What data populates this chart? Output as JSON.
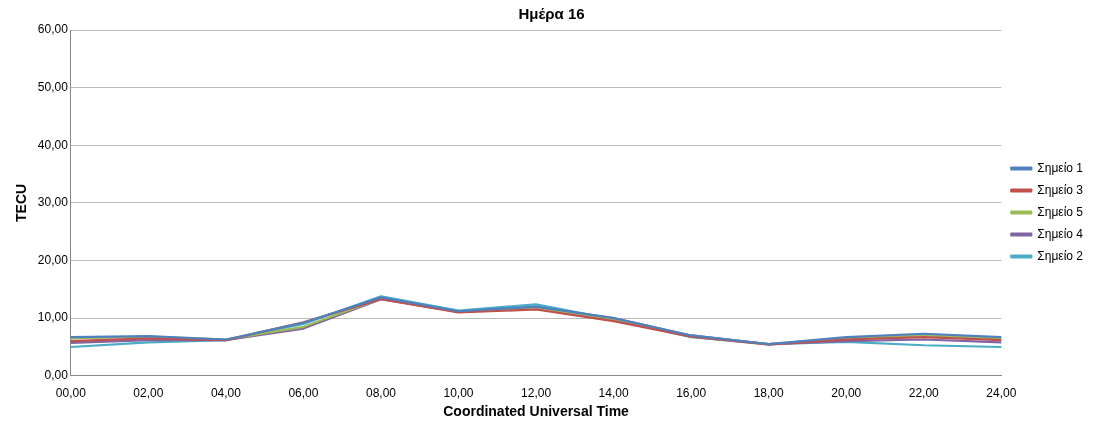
{
  "chart_data": {
    "type": "line",
    "title": "Ημέρα 16",
    "xlabel": "Coordinated Universal Time",
    "ylabel": "TECU",
    "categories": [
      "00,00",
      "02,00",
      "04,00",
      "06,00",
      "08,00",
      "10,00",
      "12,00",
      "14,00",
      "16,00",
      "18,00",
      "20,00",
      "22,00",
      "24,00"
    ],
    "series": [
      {
        "name": "Σημείο 1",
        "color": "#4f81bd",
        "values": [
          6.7,
          6.9,
          6.3,
          9.2,
          13.6,
          11.2,
          12.0,
          10.0,
          7.0,
          5.5,
          6.7,
          7.3,
          6.7
        ]
      },
      {
        "name": "Σημείο 3",
        "color": "#c0504d",
        "values": [
          6.0,
          6.5,
          6.2,
          9.3,
          13.3,
          11.0,
          11.5,
          9.5,
          6.8,
          5.4,
          6.3,
          6.7,
          6.2
        ]
      },
      {
        "name": "Σημείο 5",
        "color": "#9bbb59",
        "values": [
          6.5,
          6.8,
          6.3,
          8.5,
          13.4,
          11.1,
          11.6,
          9.8,
          6.9,
          5.5,
          6.5,
          7.0,
          6.5
        ]
      },
      {
        "name": "Σημείο 4",
        "color": "#8064a2",
        "values": [
          5.7,
          6.2,
          6.2,
          8.2,
          13.3,
          11.1,
          11.9,
          10.0,
          7.0,
          5.5,
          6.0,
          6.3,
          5.8
        ]
      },
      {
        "name": "Σημείο 2",
        "color": "#4bacc6",
        "values": [
          5.0,
          5.8,
          6.2,
          9.0,
          13.8,
          11.3,
          12.4,
          9.8,
          6.7,
          5.5,
          5.9,
          5.3,
          5.0
        ]
      }
    ],
    "ylim": [
      0,
      60
    ],
    "yticks": [
      {
        "value": 0,
        "label": "0,00"
      },
      {
        "value": 10,
        "label": "10,00"
      },
      {
        "value": 20,
        "label": "20,00"
      },
      {
        "value": 30,
        "label": "30,00"
      },
      {
        "value": 40,
        "label": "40,00"
      },
      {
        "value": 50,
        "label": "50,00"
      },
      {
        "value": 60,
        "label": "60,00"
      }
    ],
    "grid": "y",
    "legend": "right",
    "marker": "none",
    "line_style": "solid"
  }
}
